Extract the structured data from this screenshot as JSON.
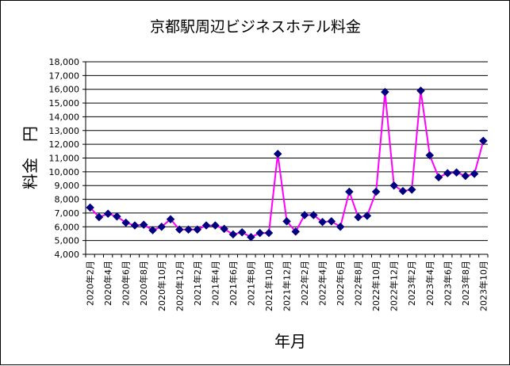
{
  "chart_data": {
    "type": "line",
    "title": "京都駅周辺ビジネスホテル料金",
    "xlabel": "年月",
    "ylabel": "料金　円",
    "ylim": [
      4000,
      18000
    ],
    "ytick_step": 1000,
    "ytick_labels": [
      "4,000",
      "5,000",
      "6,000",
      "7,000",
      "8,000",
      "9,000",
      "10,000",
      "11,000",
      "12,000",
      "13,000",
      "14,000",
      "15,000",
      "16,000",
      "17,000",
      "18,000"
    ],
    "grid": true,
    "legend": "none",
    "x": [
      "2020年2月",
      "2020年3月",
      "2020年4月",
      "2020年5月",
      "2020年6月",
      "2020年7月",
      "2020年8月",
      "2020年9月",
      "2020年10月",
      "2020年11月",
      "2020年12月",
      "2021年1月",
      "2021年2月",
      "2021年3月",
      "2021年4月",
      "2021年5月",
      "2021年6月",
      "2021年7月",
      "2021年8月",
      "2021年9月",
      "2021年10月",
      "2021年11月",
      "2021年12月",
      "2022年1月",
      "2022年2月",
      "2022年3月",
      "2022年4月",
      "2022年5月",
      "2022年6月",
      "2022年7月",
      "2022年8月",
      "2022年9月",
      "2022年10月",
      "2022年11月",
      "2022年12月",
      "2023年1月",
      "2023年2月",
      "2023年3月",
      "2023年4月",
      "2023年5月",
      "2023年6月",
      "2023年7月",
      "2023年8月",
      "2023年9月",
      "2023年10月"
    ],
    "xtick_labels": [
      "2020年2月",
      "2020年4月",
      "2020年6月",
      "2020年8月",
      "2020年10月",
      "2020年12月",
      "2021年2月",
      "2021年4月",
      "2021年6月",
      "2021年8月",
      "2021年10月",
      "2021年12月",
      "2022年2月",
      "2022年4月",
      "2022年6月",
      "2022年8月",
      "2022年10月",
      "2022年12月",
      "2023年2月",
      "2023年4月",
      "2023年6月",
      "2023年8月",
      "2023年10月"
    ],
    "series": [
      {
        "name": "料金",
        "line_color": "#ff00ff",
        "marker_color": "#000080",
        "values": [
          7400,
          6700,
          6950,
          6750,
          6300,
          6100,
          6150,
          5750,
          6000,
          6550,
          5800,
          5800,
          5800,
          6100,
          6100,
          5850,
          5450,
          5600,
          5250,
          5550,
          5550,
          11300,
          6400,
          5650,
          6850,
          6850,
          6350,
          6400,
          6000,
          8550,
          6700,
          6800,
          8550,
          15800,
          9000,
          8600,
          8700,
          15900,
          11200,
          9600,
          9900,
          9950,
          9700,
          9850,
          12250
        ]
      }
    ],
    "colors": {
      "line": "#ff00ff",
      "marker": "#000080",
      "grid": "#000000",
      "plot_background": "#ffffff"
    }
  }
}
